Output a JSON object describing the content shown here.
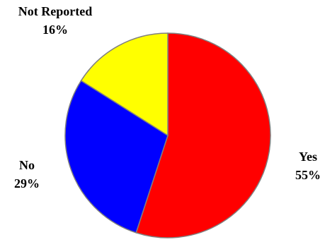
{
  "chart_data": {
    "type": "pie",
    "categories": [
      "Yes",
      "No",
      "Not Reported"
    ],
    "values": [
      55,
      29,
      16
    ],
    "value_suffix": "%",
    "colors": {
      "Yes": "#FF0000",
      "No": "#0000FF",
      "Not Reported": "#FFFF00"
    },
    "start_angle_deg": 0,
    "direction": "clockwise",
    "legend": "none",
    "slice_outline_color": "#808080"
  }
}
